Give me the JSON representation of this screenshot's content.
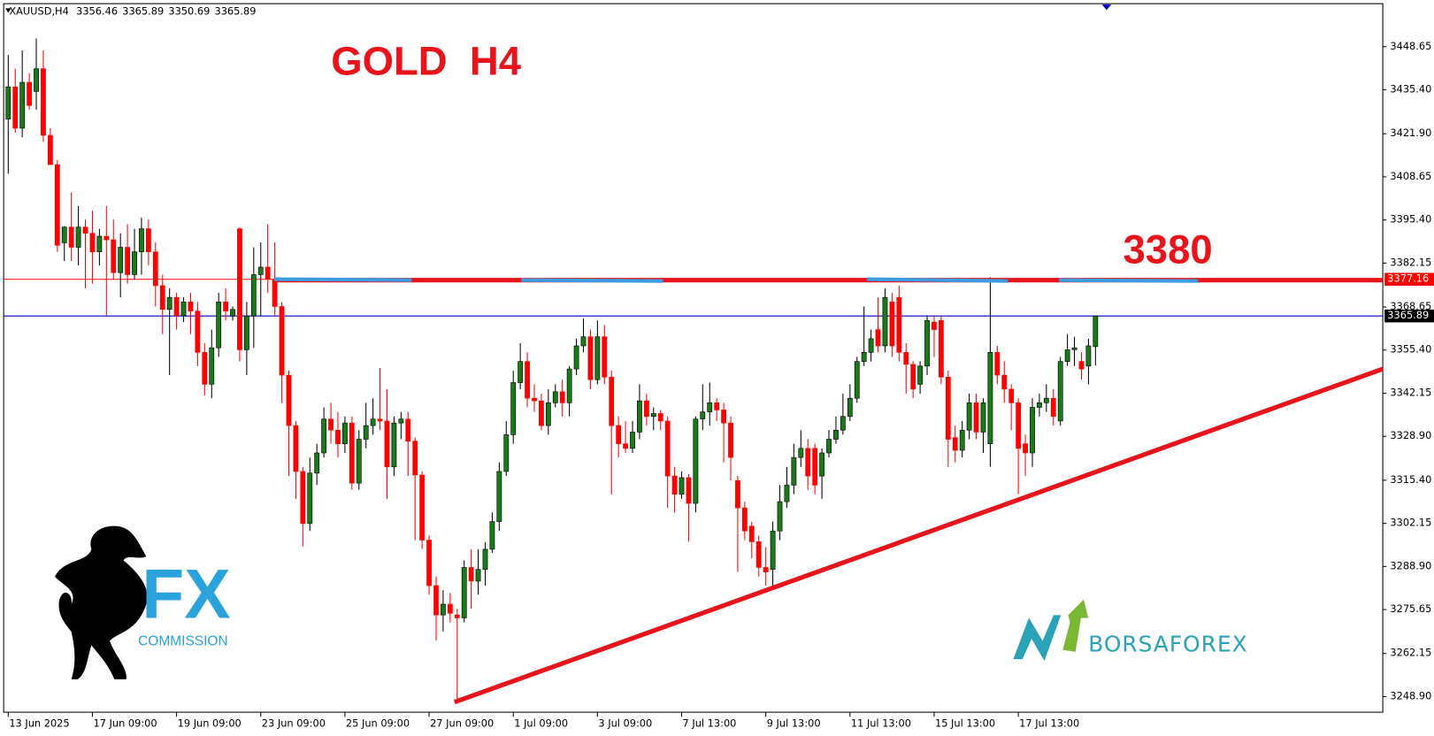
{
  "header": {
    "symbol": "XAUUSD,H4"
  },
  "logos": {
    "left": "FX",
    "left_sub": "COMMISSION",
    "right": "BORSAFOREX"
  },
  "chart_data": {
    "type": "candlestick",
    "title": "GOLD  H4",
    "annotations": [
      "3380"
    ],
    "up_color": "#1a7a1a",
    "down_color": "#ff0000",
    "ylim": [
      3244.11,
      3461.59
    ],
    "yticks": [
      3448.65,
      {
        "value": 3435.4,
        "label": "3435.40"
      },
      {
        "value": 3421.9,
        "label": "3421.90"
      },
      3408.65,
      {
        "value": 3395.4,
        "label": "3395.40"
      },
      3382.15,
      3368.65,
      {
        "value": 3355.4,
        "label": "3355.40"
      },
      3342.15,
      {
        "value": 3328.9,
        "label": "3328.90"
      },
      {
        "value": 3315.4,
        "label": "3315.40"
      },
      3302.15,
      {
        "value": 3288.9,
        "label": "3288.90"
      },
      3275.65,
      3262.15,
      {
        "value": 3248.9,
        "label": "3248.90"
      }
    ],
    "hlines": [
      {
        "value": 3377.16,
        "color": "#ff0000"
      }
    ],
    "price_line_color": "#0000cc",
    "categories": [
      "13 Jun 2025",
      null,
      null,
      null,
      null,
      null,
      null,
      null,
      null,
      null,
      null,
      null,
      "17 Jun 09:00",
      null,
      null,
      null,
      null,
      null,
      null,
      null,
      null,
      null,
      null,
      null,
      "19 Jun 09:00",
      null,
      null,
      null,
      null,
      null,
      null,
      null,
      null,
      null,
      null,
      null,
      "23 Jun 09:00",
      null,
      null,
      null,
      null,
      null,
      null,
      null,
      null,
      null,
      null,
      null,
      "25 Jun 09:00",
      null,
      null,
      null,
      null,
      null,
      null,
      null,
      null,
      null,
      null,
      null,
      "27 Jun 09:00",
      null,
      null,
      null,
      null,
      null,
      null,
      null,
      null,
      null,
      null,
      null,
      "1 Jul 09:00",
      null,
      null,
      null,
      null,
      null,
      null,
      null,
      null,
      null,
      null,
      null,
      "3 Jul 09:00",
      null,
      null,
      null,
      null,
      null,
      null,
      null,
      null,
      null,
      null,
      null,
      "7 Jul 13:00",
      null,
      null,
      null,
      null,
      null,
      null,
      null,
      null,
      null,
      null,
      null,
      "9 Jul 13:00",
      null,
      null,
      null,
      null,
      null,
      null,
      null,
      null,
      null,
      null,
      null,
      "11 Jul 13:00",
      null,
      null,
      null,
      null,
      null,
      null,
      null,
      null,
      null,
      null,
      null,
      "15 Jul 13:00",
      null,
      null,
      null,
      null,
      null,
      null,
      null,
      null,
      null,
      null,
      null,
      "17 Jul 13:00",
      null,
      null,
      null,
      null,
      null,
      null,
      null,
      null,
      null,
      null,
      null
    ],
    "ohlc": [
      [
        3426.4,
        3446.1,
        3409.6,
        3436.3
      ],
      [
        3436.3,
        3441.9,
        3422.2,
        3423.6
      ],
      [
        3423.6,
        3447.5,
        3420.8,
        3437.7
      ],
      [
        3437.7,
        3440.5,
        3429.3,
        3430.6
      ],
      [
        3434.9,
        3451.2,
        3429.3,
        3441.9
      ],
      [
        3441.9,
        3447.5,
        3419.4,
        3421.4
      ],
      [
        3421.4,
        3423.6,
        3412.3,
        3412.4
      ],
      [
        3412.4,
        3413.8,
        3385.6,
        3387.6
      ],
      [
        3388.4,
        3393.5,
        3382.8,
        3393.2
      ],
      [
        3393.2,
        3403.9,
        3382.8,
        3387.0
      ],
      [
        3387.0,
        3399.7,
        3381.4,
        3393.2
      ],
      [
        3393.2,
        3395.5,
        3374.4,
        3391.3
      ],
      [
        3391.3,
        3398.3,
        3375.8,
        3385.6
      ],
      [
        3385.6,
        3392.7,
        3381.4,
        3390.4
      ],
      [
        3390.4,
        3399.7,
        3366.0,
        3389.3
      ],
      [
        3389.3,
        3395.5,
        3377.2,
        3379.2
      ],
      [
        3379.2,
        3391.3,
        3371.6,
        3387.0
      ],
      [
        3387.0,
        3394.1,
        3375.8,
        3378.6
      ],
      [
        3378.6,
        3392.7,
        3377.2,
        3385.6
      ],
      [
        3385.6,
        3396.1,
        3378.6,
        3392.7
      ],
      [
        3392.7,
        3395.5,
        3381.4,
        3385.6
      ],
      [
        3385.6,
        3388.5,
        3368.8,
        3375.2
      ],
      [
        3375.2,
        3378.6,
        3360.3,
        3367.9
      ],
      [
        3367.9,
        3374.4,
        3347.7,
        3371.6
      ],
      [
        3371.6,
        3373.0,
        3361.7,
        3366.0
      ],
      [
        3366.0,
        3371.6,
        3364.0,
        3370.2
      ],
      [
        3370.2,
        3373.0,
        3360.3,
        3367.4
      ],
      [
        3367.4,
        3370.2,
        3350.5,
        3354.7
      ],
      [
        3354.7,
        3357.5,
        3341.5,
        3344.9
      ],
      [
        3344.9,
        3361.7,
        3340.6,
        3356.1
      ],
      [
        3356.1,
        3373.0,
        3353.3,
        3370.2
      ],
      [
        3370.2,
        3374.4,
        3364.5,
        3367.4
      ],
      [
        3365.9,
        3368.8,
        3364.5,
        3367.9
      ],
      [
        3392.7,
        3393.2,
        3351.9,
        3355.5
      ],
      [
        3355.5,
        3370.2,
        3347.7,
        3365.9
      ],
      [
        3365.9,
        3387.0,
        3356.1,
        3378.6
      ],
      [
        3378.6,
        3388.5,
        3365.9,
        3380.9
      ],
      [
        3380.9,
        3394.1,
        3373.0,
        3377.2
      ],
      [
        3377.2,
        3388.5,
        3365.9,
        3368.8
      ],
      [
        3368.8,
        3370.2,
        3339.2,
        3347.7
      ],
      [
        3347.7,
        3349.1,
        3316.7,
        3332.2
      ],
      [
        3332.2,
        3333.6,
        3309.7,
        3318.1
      ],
      [
        3318.1,
        3319.5,
        3295.1,
        3302.1
      ],
      [
        3302.1,
        3322.4,
        3299.8,
        3317.6
      ],
      [
        3317.6,
        3326.6,
        3313.9,
        3323.8
      ],
      [
        3323.8,
        3337.8,
        3322.4,
        3334.2
      ],
      [
        3334.2,
        3339.2,
        3326.6,
        3330.8
      ],
      [
        3330.8,
        3336.4,
        3322.4,
        3326.6
      ],
      [
        3326.6,
        3335.0,
        3323.8,
        3333.0
      ],
      [
        3333.0,
        3335.0,
        3312.5,
        3314.5
      ],
      [
        3314.5,
        3330.8,
        3312.5,
        3328.0
      ],
      [
        3328.0,
        3339.2,
        3325.2,
        3332.2
      ],
      [
        3332.2,
        3340.6,
        3329.4,
        3334.2
      ],
      [
        3334.2,
        3349.9,
        3330.8,
        3333.6
      ],
      [
        3333.6,
        3343.4,
        3309.7,
        3319.5
      ],
      [
        3319.5,
        3335.0,
        3316.7,
        3333.0
      ],
      [
        3333.0,
        3336.4,
        3328.0,
        3334.2
      ],
      [
        3334.2,
        3336.4,
        3316.7,
        3327.4
      ],
      [
        3327.4,
        3328.5,
        3297.0,
        3317.0
      ],
      [
        3317.0,
        3318.1,
        3294.2,
        3297.0
      ],
      [
        3297.0,
        3298.4,
        3280.2,
        3283.0
      ],
      [
        3283.0,
        3285.8,
        3266.1,
        3274.0
      ],
      [
        3274.0,
        3281.6,
        3268.9,
        3277.3
      ],
      [
        3277.3,
        3280.7,
        3271.7,
        3274.5
      ],
      [
        3274.0,
        3275.9,
        3247.8,
        3273.1
      ],
      [
        3273.1,
        3290.8,
        3271.7,
        3288.6
      ],
      [
        3288.6,
        3294.2,
        3275.9,
        3284.4
      ],
      [
        3284.4,
        3294.2,
        3280.2,
        3288.0
      ],
      [
        3288.0,
        3296.4,
        3283.0,
        3294.2
      ],
      [
        3294.2,
        3305.5,
        3293.1,
        3302.7
      ],
      [
        3302.7,
        3320.9,
        3299.8,
        3318.1
      ],
      [
        3318.1,
        3333.6,
        3316.7,
        3329.4
      ],
      [
        3329.4,
        3349.1,
        3326.6,
        3345.4
      ],
      [
        3345.4,
        3357.5,
        3343.4,
        3351.9
      ],
      [
        3351.9,
        3354.7,
        3337.8,
        3340.6
      ],
      [
        3340.6,
        3344.9,
        3336.4,
        3339.8
      ],
      [
        3339.8,
        3342.0,
        3330.8,
        3332.2
      ],
      [
        3332.2,
        3343.4,
        3329.4,
        3339.2
      ],
      [
        3339.2,
        3344.9,
        3337.8,
        3342.6
      ],
      [
        3342.6,
        3346.3,
        3335.0,
        3339.2
      ],
      [
        3339.2,
        3350.5,
        3335.0,
        3349.6
      ],
      [
        3349.6,
        3358.9,
        3347.7,
        3356.7
      ],
      [
        3356.7,
        3365.1,
        3354.7,
        3359.5
      ],
      [
        3359.5,
        3361.7,
        3343.4,
        3346.3
      ],
      [
        3346.3,
        3364.5,
        3344.9,
        3359.5
      ],
      [
        3359.5,
        3363.1,
        3344.9,
        3347.1
      ],
      [
        3347.1,
        3349.1,
        3311.1,
        3332.2
      ],
      [
        3332.2,
        3335.0,
        3322.4,
        3326.6
      ],
      [
        3326.6,
        3333.6,
        3323.8,
        3325.2
      ],
      [
        3325.2,
        3333.6,
        3323.8,
        3330.2
      ],
      [
        3330.2,
        3344.9,
        3328.0,
        3339.8
      ],
      [
        3339.8,
        3342.0,
        3332.2,
        3335.0
      ],
      [
        3335.0,
        3337.8,
        3330.8,
        3335.9
      ],
      [
        3335.9,
        3337.0,
        3330.8,
        3333.6
      ],
      [
        3333.6,
        3335.0,
        3306.9,
        3316.7
      ],
      [
        3316.7,
        3319.5,
        3305.5,
        3311.1
      ],
      [
        3311.1,
        3318.1,
        3309.7,
        3316.2
      ],
      [
        3316.2,
        3317.3,
        3296.5,
        3308.3
      ],
      [
        3308.3,
        3335.0,
        3305.5,
        3334.2
      ],
      [
        3334.2,
        3344.9,
        3330.8,
        3336.4
      ],
      [
        3336.4,
        3345.4,
        3332.2,
        3339.2
      ],
      [
        3339.2,
        3340.6,
        3333.6,
        3337.0
      ],
      [
        3337.0,
        3339.2,
        3320.9,
        3333.0
      ],
      [
        3333.0,
        3335.0,
        3315.3,
        3322.4
      ],
      [
        3315.3,
        3316.7,
        3287.2,
        3306.9
      ],
      [
        3306.9,
        3308.8,
        3297.0,
        3299.8
      ],
      [
        3301.3,
        3302.7,
        3291.4,
        3296.5
      ],
      [
        3296.5,
        3298.4,
        3285.8,
        3288.6
      ],
      [
        3288.6,
        3294.8,
        3283.0,
        3287.2
      ],
      [
        3288.0,
        3302.7,
        3283.0,
        3299.8
      ],
      [
        3299.8,
        3313.9,
        3297.0,
        3308.8
      ],
      [
        3308.8,
        3319.5,
        3306.9,
        3313.9
      ],
      [
        3313.9,
        3326.6,
        3311.1,
        3322.4
      ],
      [
        3322.4,
        3330.8,
        3319.5,
        3325.2
      ],
      [
        3325.2,
        3328.0,
        3312.5,
        3316.7
      ],
      [
        3325.2,
        3326.6,
        3311.1,
        3313.9
      ],
      [
        3316.7,
        3325.2,
        3309.7,
        3323.8
      ],
      [
        3323.8,
        3330.8,
        3322.4,
        3328.0
      ],
      [
        3328.0,
        3335.0,
        3326.6,
        3330.8
      ],
      [
        3330.8,
        3342.0,
        3329.4,
        3335.0
      ],
      [
        3335.0,
        3344.9,
        3333.6,
        3340.6
      ],
      [
        3340.6,
        3353.3,
        3339.2,
        3351.9
      ],
      [
        3351.9,
        3368.8,
        3350.5,
        3354.7
      ],
      [
        3354.7,
        3361.7,
        3351.9,
        3358.9
      ],
      [
        3361.7,
        3371.6,
        3354.7,
        3356.7
      ],
      [
        3356.7,
        3374.4,
        3354.7,
        3371.6
      ],
      [
        3370.2,
        3373.0,
        3353.3,
        3356.7
      ],
      [
        3371.6,
        3375.2,
        3351.9,
        3354.7
      ],
      [
        3354.7,
        3357.5,
        3342.0,
        3351.0
      ],
      [
        3351.0,
        3352.0,
        3340.6,
        3343.4
      ],
      [
        3344.9,
        3352.0,
        3342.0,
        3350.5
      ],
      [
        3350.5,
        3366.0,
        3347.7,
        3364.5
      ],
      [
        3364.0,
        3366.0,
        3353.3,
        3361.7
      ],
      [
        3364.5,
        3366.0,
        3344.9,
        3347.1
      ],
      [
        3347.1,
        3349.1,
        3319.5,
        3328.0
      ],
      [
        3328.5,
        3332.2,
        3320.9,
        3324.6
      ],
      [
        3324.6,
        3333.6,
        3322.4,
        3330.8
      ],
      [
        3330.8,
        3342.0,
        3328.0,
        3339.2
      ],
      [
        3339.2,
        3342.0,
        3328.0,
        3330.2
      ],
      [
        3330.2,
        3340.6,
        3323.8,
        3339.2
      ],
      [
        3326.6,
        3377.8,
        3319.5,
        3354.7
      ],
      [
        3354.7,
        3356.7,
        3344.9,
        3347.7
      ],
      [
        3347.7,
        3352.0,
        3339.2,
        3343.4
      ],
      [
        3343.4,
        3344.9,
        3330.8,
        3339.2
      ],
      [
        3339.2,
        3340.6,
        3311.1,
        3325.2
      ],
      [
        3326.6,
        3329.4,
        3316.7,
        3323.8
      ],
      [
        3323.8,
        3340.6,
        3319.5,
        3337.8
      ],
      [
        3337.8,
        3342.0,
        3335.0,
        3339.2
      ],
      [
        3339.2,
        3344.9,
        3336.4,
        3340.6
      ],
      [
        3340.6,
        3343.4,
        3332.2,
        3335.0
      ],
      [
        3333.6,
        3353.3,
        3332.2,
        3351.9
      ],
      [
        3351.9,
        3360.3,
        3350.5,
        3355.5
      ],
      [
        3355.5,
        3359.5,
        3350.5,
        3356.1
      ],
      [
        3351.9,
        3354.7,
        3346.3,
        3349.6
      ],
      [
        3350.5,
        3358.9,
        3344.9,
        3356.7
      ],
      [
        3356.46,
        3365.89,
        3350.69,
        3365.89
      ]
    ]
  }
}
